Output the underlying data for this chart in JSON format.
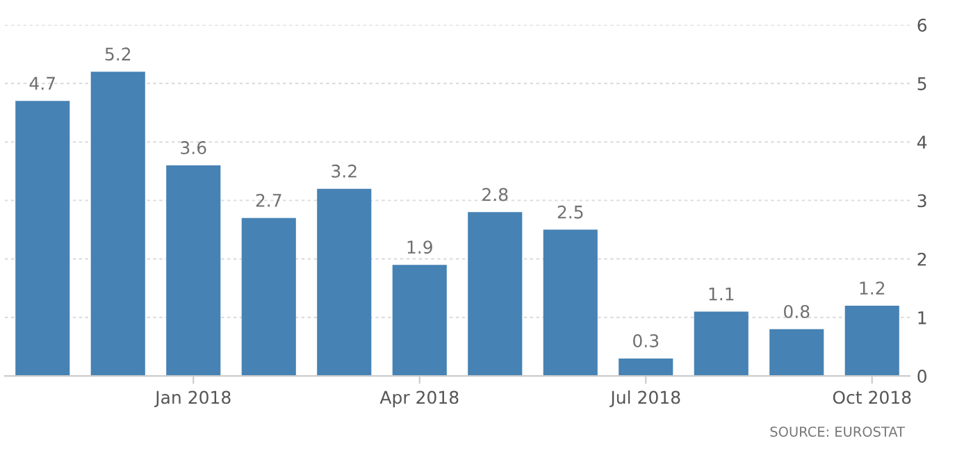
{
  "chart_data": {
    "type": "bar",
    "categories": [
      null,
      null,
      "Jan 2018",
      null,
      null,
      "Apr 2018",
      null,
      null,
      "Jul 2018",
      null,
      null,
      "Oct 2018"
    ],
    "values": [
      4.7,
      5.2,
      3.6,
      2.7,
      3.2,
      1.9,
      2.8,
      2.5,
      0.3,
      1.1,
      0.8,
      1.2
    ],
    "color": "#4682b4",
    "ylim": [
      0,
      6
    ],
    "yticks": [
      0,
      1,
      2,
      3,
      4,
      5,
      6
    ],
    "grid": "y",
    "data_labels": true,
    "annotations": [
      "SOURCE: EUROSTAT"
    ]
  }
}
